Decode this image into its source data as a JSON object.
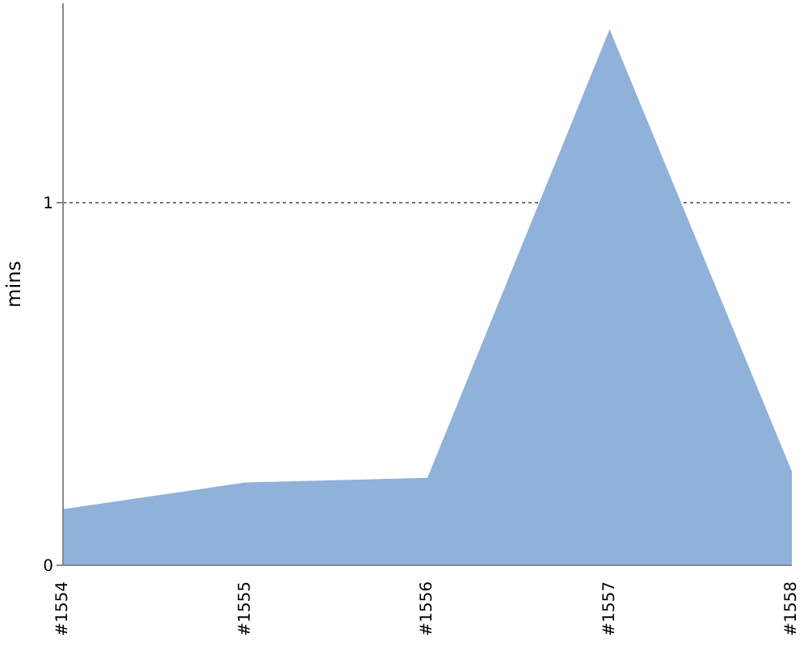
{
  "chart_data": {
    "type": "area",
    "ylabel": "mins",
    "categories": [
      "#1554",
      "#1555",
      "#1556",
      "#1557",
      "#1558"
    ],
    "series": [
      {
        "color": "#8fb1da",
        "values": [
          0.155,
          0.228,
          0.241,
          1.478,
          0.259
        ]
      }
    ],
    "ylim": [
      0,
      1.55
    ],
    "yticks": [
      0,
      1
    ],
    "grid": "y",
    "legend": false
  }
}
